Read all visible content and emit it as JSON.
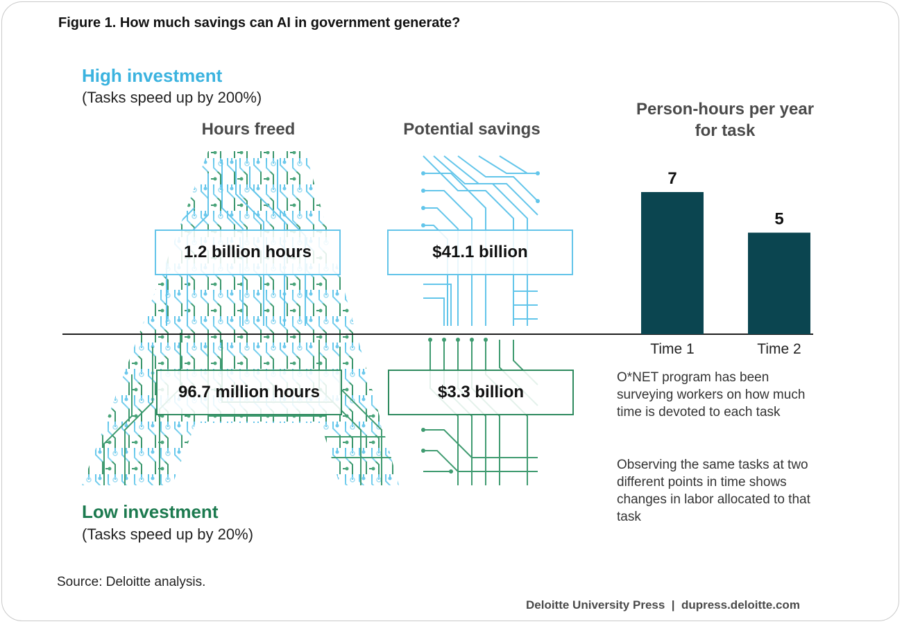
{
  "figure_title": "Figure 1. How much savings can AI in government generate?",
  "high": {
    "title": "High investment",
    "subtitle": "(Tasks speed up by 200%)",
    "hours": "1.2 billion hours",
    "savings": "$41.1 billion"
  },
  "low": {
    "title": "Low investment",
    "subtitle": "(Tasks speed up by 20%)",
    "hours": "96.7 million hours",
    "savings": "$3.3 billion"
  },
  "columns": {
    "hours_freed": "Hours freed",
    "potential_savings": "Potential savings"
  },
  "notes": [
    "O*NET program has been surveying workers on how much time is devoted to each task",
    "Observing the same tasks at two different points in time shows changes in labor allocated to that task"
  ],
  "source": "Source: Deloitte analysis.",
  "credit": "Deloitte University Press  |  dupress.deloitte.com",
  "colors": {
    "high": "#3bb3df",
    "low": "#1c7a4f",
    "bar": "#0b4550"
  },
  "chart_data": {
    "type": "bar",
    "title": "Person-hours per year for task",
    "categories": [
      "Time 1",
      "Time 2"
    ],
    "values": [
      7,
      5
    ],
    "ylim": [
      0,
      7
    ],
    "xlabel": "",
    "ylabel": "",
    "grid": false
  }
}
